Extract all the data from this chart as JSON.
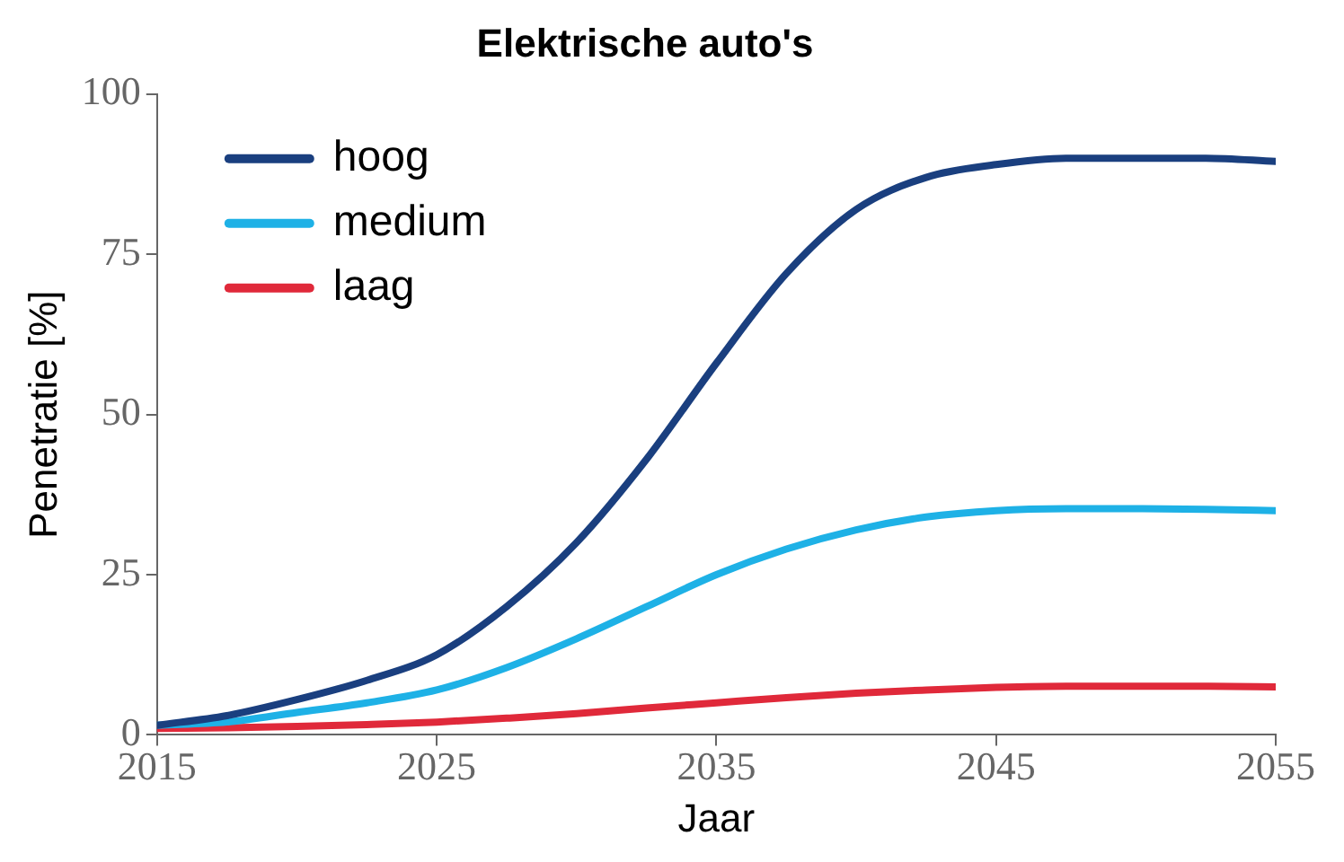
{
  "chart_data": {
    "type": "line",
    "title": "Elektrische auto's",
    "xlabel": "Jaar",
    "ylabel": "Penetratie [%]",
    "x": [
      2015,
      2017.5,
      2020,
      2022.5,
      2025,
      2027.5,
      2030,
      2032.5,
      2035,
      2037.5,
      2040,
      2042.5,
      2045,
      2047.5,
      2050,
      2052.5,
      2055
    ],
    "series": [
      {
        "name": "hoog",
        "color": "#1a3f7f",
        "values": [
          1.5,
          3,
          5.5,
          8.5,
          12.5,
          20,
          30,
          43,
          58,
          72,
          82,
          87,
          89,
          90,
          90,
          90,
          89.5
        ]
      },
      {
        "name": "medium",
        "color": "#1eb1e6",
        "values": [
          1.5,
          2,
          3.5,
          5,
          7,
          10.5,
          15,
          20,
          25,
          29,
          32,
          34,
          35,
          35.3,
          35.3,
          35.2,
          35
        ]
      },
      {
        "name": "laag",
        "color": "#e0293a",
        "values": [
          1,
          1.1,
          1.3,
          1.6,
          2,
          2.6,
          3.3,
          4.2,
          5,
          5.8,
          6.5,
          7,
          7.4,
          7.6,
          7.6,
          7.6,
          7.5
        ]
      }
    ],
    "xlim": [
      2015,
      2055
    ],
    "xticks": [
      2015,
      2025,
      2035,
      2045,
      2055
    ],
    "ylim": [
      0,
      100
    ],
    "yticks": [
      0,
      25,
      50,
      75,
      100
    ],
    "grid": false,
    "legend": "top left",
    "marker": "none",
    "line_style": "solid"
  }
}
